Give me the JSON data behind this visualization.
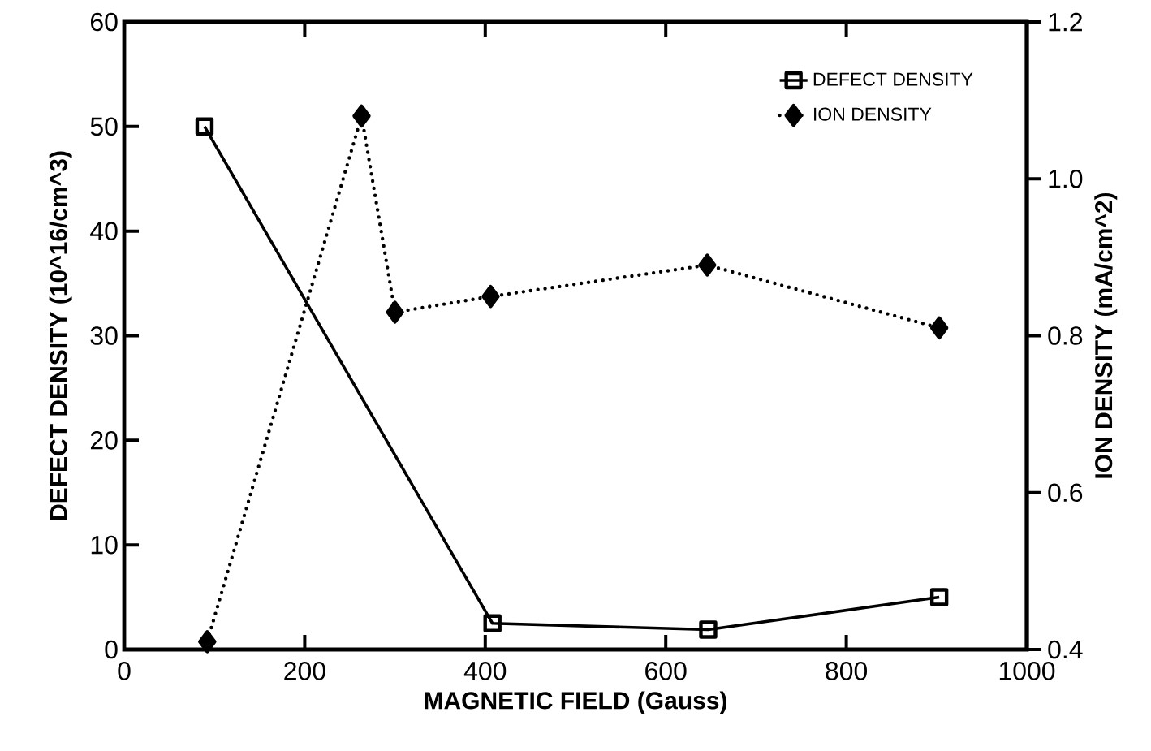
{
  "chart_data": {
    "type": "line",
    "xlabel": "MAGNETIC FIELD (Gauss)",
    "ylabel": "DEFECT DENSITY (10^16/cm^3)",
    "y2label": "ION DENSITY (mA/cm^2)",
    "series": [
      {
        "name": "DEFECT DENSITY",
        "color": "#000000",
        "marker": "square",
        "line_style": "solid",
        "x": [
          89,
          408,
          647,
          903
        ],
        "values": [
          50,
          2.5,
          1.9,
          5.0
        ]
      },
      {
        "name": "ION DENSITY",
        "color": "#000000",
        "marker": "diamond",
        "line_style": "dotted",
        "axis": "y2",
        "x": [
          92,
          263,
          300,
          406,
          646,
          903
        ],
        "values": [
          0.41,
          1.08,
          0.83,
          0.85,
          0.89,
          0.81
        ]
      }
    ],
    "xlim": [
      0,
      1000
    ],
    "xticks": [
      0,
      200,
      400,
      600,
      800,
      1000
    ],
    "ylim": [
      0,
      60
    ],
    "yticks": [
      0,
      10,
      20,
      30,
      40,
      50,
      60
    ],
    "y2lim": [
      0.4,
      1.2
    ],
    "y2ticks": [
      {
        "value": 0.4,
        "label": "0.4"
      },
      {
        "value": 0.6,
        "label": "0.6"
      },
      {
        "value": 0.8,
        "label": "0.8"
      },
      {
        "value": 1.0,
        "label": "1.0"
      },
      {
        "value": 1.2,
        "label": "1.2"
      }
    ],
    "grid": false,
    "legend": "top right"
  }
}
